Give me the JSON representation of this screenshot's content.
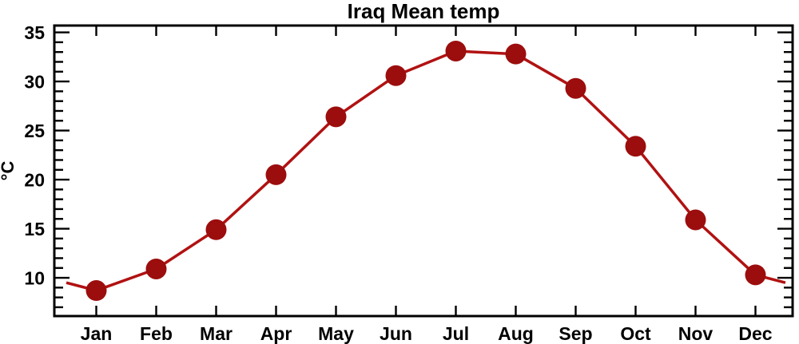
{
  "title": "Iraq Mean temp",
  "chart_data": {
    "type": "line",
    "title": "Iraq Mean temp",
    "xlabel": "",
    "ylabel": "°C",
    "categories": [
      "Jan",
      "Feb",
      "Mar",
      "Apr",
      "May",
      "Jun",
      "Jul",
      "Aug",
      "Sep",
      "Oct",
      "Nov",
      "Dec"
    ],
    "values": [
      8.7,
      10.9,
      14.9,
      20.5,
      26.4,
      30.6,
      33.1,
      32.8,
      29.3,
      23.4,
      15.9,
      10.3
    ],
    "line_extension": {
      "left": {
        "x": 0.5,
        "value": 9.5
      },
      "right": {
        "x": 12.5,
        "value": 9.5
      }
    },
    "xlim": [
      0.3,
      12.62
    ],
    "ylim": [
      6.1,
      35.7
    ],
    "yticks_major": [
      10,
      15,
      20,
      25,
      30,
      35
    ],
    "ytick_minor_step": 1,
    "grid": false,
    "legend": "none",
    "line_color": "#b11212",
    "marker_color": "#9c0d0d",
    "marker_diameter": 26,
    "frame_color": "#000000"
  }
}
